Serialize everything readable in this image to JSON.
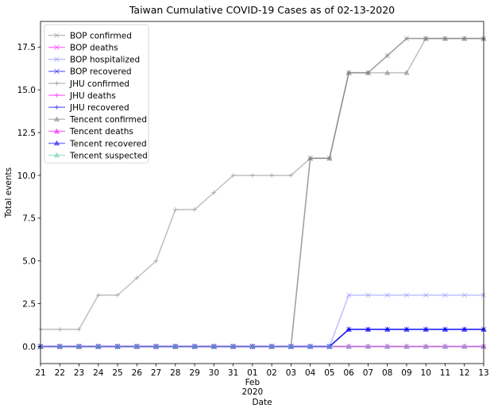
{
  "chart_data": {
    "type": "line",
    "title": "Taiwan Cumulative COVID-19 Cases as of 02-13-2020",
    "xlabel": "Date",
    "ylabel": "Total events",
    "ylim": [
      -1,
      19
    ],
    "yticks": [
      0.0,
      2.5,
      5.0,
      7.5,
      10.0,
      12.5,
      15.0,
      17.5
    ],
    "ytick_labels": [
      "0.0",
      "2.5",
      "5.0",
      "7.5",
      "10.0",
      "12.5",
      "15.0",
      "17.5"
    ],
    "x": [
      "2020-01-21",
      "2020-01-22",
      "2020-01-23",
      "2020-01-24",
      "2020-01-25",
      "2020-01-26",
      "2020-01-27",
      "2020-01-28",
      "2020-01-29",
      "2020-01-30",
      "2020-01-31",
      "2020-02-01",
      "2020-02-02",
      "2020-02-03",
      "2020-02-04",
      "2020-02-05",
      "2020-02-06",
      "2020-02-07",
      "2020-02-08",
      "2020-02-09",
      "2020-02-10",
      "2020-02-11",
      "2020-02-12",
      "2020-02-13"
    ],
    "xtick_labels": [
      "21",
      "22",
      "23",
      "24",
      "25",
      "26",
      "27",
      "28",
      "29",
      "30",
      "31",
      "01",
      "02",
      "03",
      "04",
      "05",
      "06",
      "07",
      "08",
      "09",
      "10",
      "11",
      "12",
      "13"
    ],
    "xtick_sublabels": {
      "index": 11,
      "month": "Feb",
      "year": "2020"
    },
    "grid": false,
    "legend_position": "top-left",
    "series": [
      {
        "name": "BOP confirmed",
        "color": "#7f7f7f",
        "alpha": 0.5,
        "marker": "x",
        "values": [
          0,
          0,
          0,
          0,
          0,
          0,
          0,
          0,
          0,
          0,
          0,
          0,
          0,
          0,
          11,
          11,
          16,
          16,
          17,
          18,
          18,
          18,
          18,
          18
        ]
      },
      {
        "name": "BOP deaths",
        "color": "#ff00ff",
        "alpha": 0.5,
        "marker": "x",
        "values": [
          0,
          0,
          0,
          0,
          0,
          0,
          0,
          0,
          0,
          0,
          0,
          0,
          0,
          0,
          0,
          0,
          0,
          0,
          0,
          0,
          0,
          0,
          0,
          0
        ]
      },
      {
        "name": "BOP hospitalized",
        "color": "#7f7fff",
        "alpha": 0.5,
        "marker": "x",
        "values": [
          0,
          0,
          0,
          0,
          0,
          0,
          0,
          0,
          0,
          0,
          0,
          0,
          0,
          0,
          0,
          0,
          3,
          3,
          3,
          3,
          3,
          3,
          3,
          3
        ]
      },
      {
        "name": "BOP recovered",
        "color": "#0000ff",
        "alpha": 0.5,
        "marker": "x",
        "values": [
          0,
          0,
          0,
          0,
          0,
          0,
          0,
          0,
          0,
          0,
          0,
          0,
          0,
          0,
          0,
          0,
          1,
          1,
          1,
          1,
          1,
          1,
          1,
          1
        ]
      },
      {
        "name": "JHU confirmed",
        "color": "#7f7f7f",
        "alpha": 0.5,
        "marker": "+",
        "values": [
          1,
          1,
          1,
          3,
          3,
          4,
          5,
          8,
          8,
          9,
          10,
          10,
          10,
          10,
          11,
          11,
          16,
          16,
          17,
          18,
          18,
          18,
          18,
          18
        ]
      },
      {
        "name": "JHU deaths",
        "color": "#ff00ff",
        "alpha": 0.5,
        "marker": "+",
        "values": [
          0,
          0,
          0,
          0,
          0,
          0,
          0,
          0,
          0,
          0,
          0,
          0,
          0,
          0,
          0,
          0,
          0,
          0,
          0,
          0,
          0,
          0,
          0,
          0
        ]
      },
      {
        "name": "JHU recovered",
        "color": "#0000ff",
        "alpha": 0.5,
        "marker": "+",
        "values": [
          0,
          0,
          0,
          0,
          0,
          0,
          0,
          0,
          0,
          0,
          0,
          0,
          0,
          0,
          0,
          0,
          1,
          1,
          1,
          1,
          1,
          1,
          1,
          1
        ]
      },
      {
        "name": "Tencent confirmed",
        "color": "#7f7f7f",
        "alpha": 0.5,
        "marker": "^",
        "values": [
          0,
          0,
          0,
          0,
          0,
          0,
          0,
          0,
          0,
          0,
          0,
          0,
          0,
          0,
          11,
          11,
          16,
          16,
          16,
          16,
          18,
          18,
          18,
          18
        ]
      },
      {
        "name": "Tencent deaths",
        "color": "#ff00ff",
        "alpha": 0.5,
        "marker": "^",
        "values": [
          0,
          0,
          0,
          0,
          0,
          0,
          0,
          0,
          0,
          0,
          0,
          0,
          0,
          0,
          0,
          0,
          0,
          0,
          0,
          0,
          0,
          0,
          0,
          0
        ]
      },
      {
        "name": "Tencent recovered",
        "color": "#0000ff",
        "alpha": 0.5,
        "marker": "^",
        "values": [
          0,
          0,
          0,
          0,
          0,
          0,
          0,
          0,
          0,
          0,
          0,
          0,
          0,
          0,
          0,
          0,
          1,
          1,
          1,
          1,
          1,
          1,
          1,
          1
        ]
      },
      {
        "name": "Tencent suspected",
        "color": "#66ccaa",
        "alpha": 0.5,
        "marker": "^",
        "values": [
          0,
          0,
          0,
          0,
          0,
          0,
          0,
          0,
          0,
          0,
          0,
          0,
          0,
          0,
          0,
          0,
          0,
          0,
          0,
          0,
          0,
          0,
          0,
          0
        ]
      }
    ]
  }
}
